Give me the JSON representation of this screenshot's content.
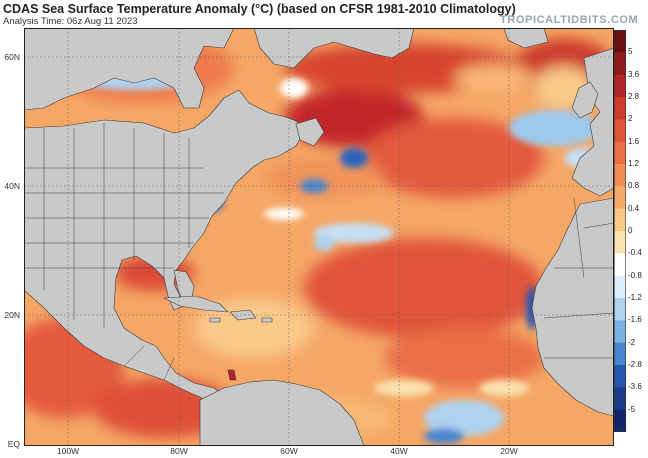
{
  "title": "CDAS Sea Surface Temperature Anomaly (°C) (based on CFSR 1981-2010 Climatology)",
  "subtitle": "Analysis Time: 06z Aug 11 2023",
  "brand": "TROPICALTIDBITS.COM",
  "lat_labels": [
    "60N",
    "40N",
    "20N",
    "EQ"
  ],
  "lon_labels": [
    "100W",
    "80W",
    "60W",
    "40W",
    "20W"
  ],
  "colorbar": {
    "labels": [
      "5",
      "3.6",
      "2.8",
      "2",
      "1.6",
      "1.2",
      "0.8",
      "0.4",
      "0",
      "-0.4",
      "-0.8",
      "-1.2",
      "-1.6",
      "-2",
      "-2.8",
      "-3.6",
      "-5"
    ],
    "colors": [
      "#6b0f12",
      "#8e1a1c",
      "#b22425",
      "#cf3a2b",
      "#e0553a",
      "#ea7047",
      "#f08d56",
      "#f5ab6a",
      "#f9c98a",
      "#fbe3b0",
      "#ffffff",
      "#dceefa",
      "#aed3f0",
      "#7bb2e3",
      "#4a86cf",
      "#2855b0",
      "#1a3a8a",
      "#10256a"
    ]
  },
  "colors": {
    "land": "#c9c9c9",
    "ocean_base": "#f6b06f",
    "border": "#2b2b2b"
  }
}
